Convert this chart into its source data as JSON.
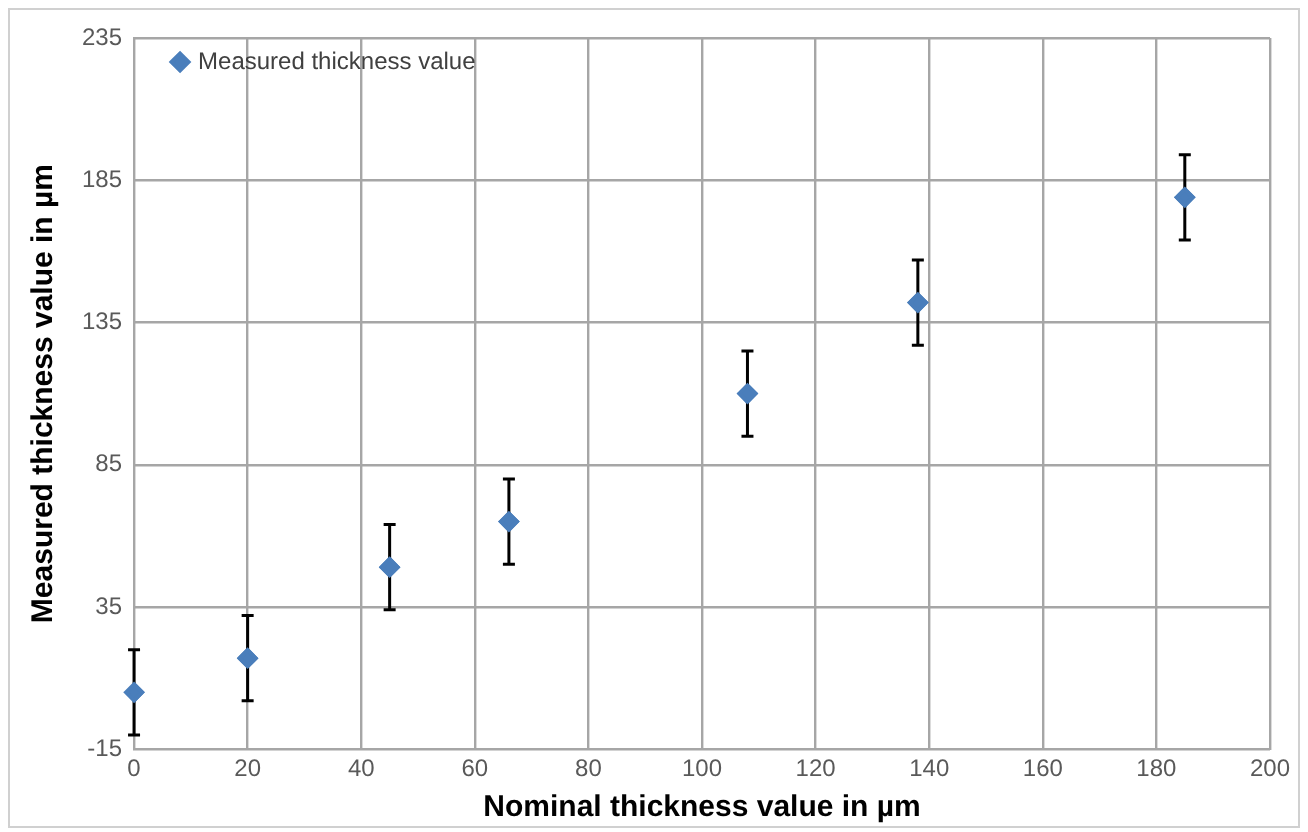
{
  "chart_data": {
    "type": "scatter",
    "xlabel": "Nominal thickness value in µm",
    "ylabel": "Measured thickness value in µm",
    "x": [
      0,
      20,
      45,
      66,
      108,
      138,
      185
    ],
    "series": [
      {
        "name": "Measured thickness value",
        "color": "#4a7ebb",
        "values": [
          5,
          17,
          49,
          65,
          110,
          142,
          179
        ],
        "errors": [
          15,
          15,
          15,
          15,
          15,
          15,
          15
        ]
      }
    ],
    "xlim": [
      0,
      200
    ],
    "xticks": [
      0,
      20,
      40,
      60,
      80,
      100,
      120,
      140,
      160,
      180,
      200
    ],
    "ylim": [
      -15,
      235
    ],
    "yticks": [
      -15,
      35,
      85,
      135,
      185,
      235
    ],
    "grid": true,
    "legend": "top left",
    "marker": "diamond"
  }
}
